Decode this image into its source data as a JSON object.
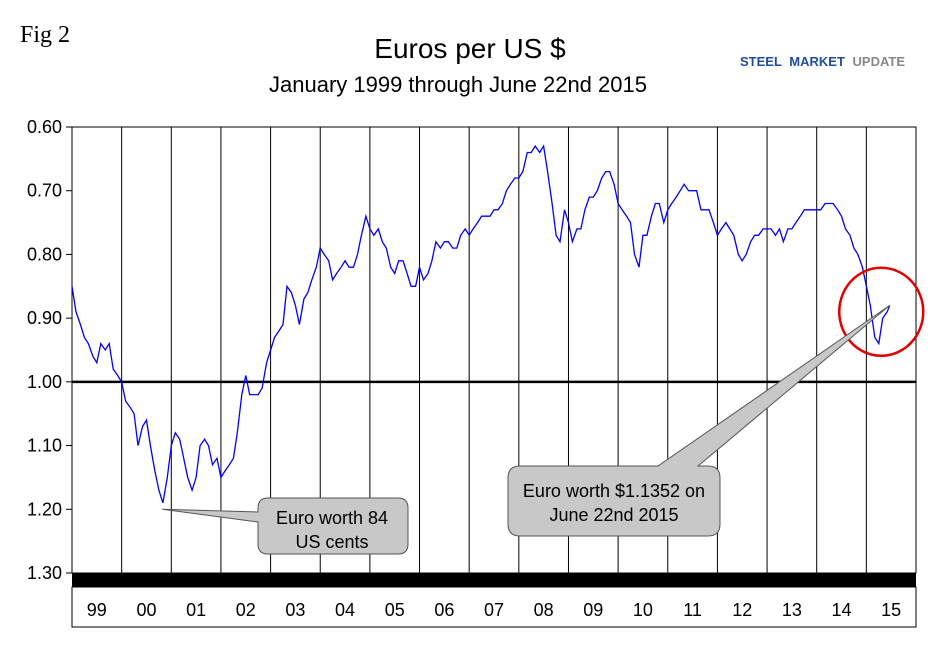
{
  "figure": {
    "fig_label": "Fig 2",
    "logo": {
      "word1": "STEEL",
      "word2": "MARKET",
      "word3": "UPDATE",
      "color1": "#1f4e9c",
      "color2": "#888888"
    }
  },
  "chart_data": {
    "type": "line",
    "title": "Euros per US $",
    "subtitle": "January 1999 through June 22nd 2015",
    "xlabel": "",
    "ylabel": "",
    "y_inverted": true,
    "ylim": [
      0.6,
      1.3
    ],
    "xlim": [
      1999.0,
      2016.0
    ],
    "y_ticks": [
      "0.60",
      "0.70",
      "0.80",
      "0.90",
      "1.00",
      "1.10",
      "1.20",
      "1.30"
    ],
    "x_categories": [
      "99",
      "00",
      "01",
      "02",
      "03",
      "04",
      "05",
      "06",
      "07",
      "08",
      "09",
      "10",
      "11",
      "12",
      "13",
      "14",
      "15"
    ],
    "grid": "vertical lines at year boundaries",
    "reference_line": 1.0,
    "line_color": "#0000ff",
    "series": [
      {
        "x": [
          1999.0,
          1999.08,
          1999.17,
          1999.25,
          1999.33,
          1999.42,
          1999.5,
          1999.58,
          1999.67,
          1999.75,
          1999.83,
          1999.92,
          2000.0,
          2000.08,
          2000.17,
          2000.25,
          2000.33,
          2000.42,
          2000.5,
          2000.58,
          2000.67,
          2000.75,
          2000.83,
          2000.92,
          2001.0,
          2001.08,
          2001.17,
          2001.25,
          2001.33,
          2001.42,
          2001.5,
          2001.58,
          2001.67,
          2001.75,
          2001.83,
          2001.92,
          2002.0,
          2002.08,
          2002.17,
          2002.25,
          2002.33,
          2002.42,
          2002.5,
          2002.58,
          2002.67,
          2002.75,
          2002.83,
          2002.92,
          2003.0,
          2003.08,
          2003.17,
          2003.25,
          2003.33,
          2003.42,
          2003.5,
          2003.58,
          2003.67,
          2003.75,
          2003.83,
          2003.92,
          2004.0,
          2004.08,
          2004.17,
          2004.25,
          2004.33,
          2004.42,
          2004.5,
          2004.58,
          2004.67,
          2004.75,
          2004.83,
          2004.92,
          2005.0,
          2005.08,
          2005.17,
          2005.25,
          2005.33,
          2005.42,
          2005.5,
          2005.58,
          2005.67,
          2005.75,
          2005.83,
          2005.92,
          2006.0,
          2006.08,
          2006.17,
          2006.25,
          2006.33,
          2006.42,
          2006.5,
          2006.58,
          2006.67,
          2006.75,
          2006.83,
          2006.92,
          2007.0,
          2007.08,
          2007.17,
          2007.25,
          2007.33,
          2007.42,
          2007.5,
          2007.58,
          2007.67,
          2007.75,
          2007.83,
          2007.92,
          2008.0,
          2008.08,
          2008.17,
          2008.25,
          2008.33,
          2008.42,
          2008.5,
          2008.58,
          2008.67,
          2008.75,
          2008.83,
          2008.92,
          2009.0,
          2009.08,
          2009.17,
          2009.25,
          2009.33,
          2009.42,
          2009.5,
          2009.58,
          2009.67,
          2009.75,
          2009.83,
          2009.92,
          2010.0,
          2010.08,
          2010.17,
          2010.25,
          2010.33,
          2010.42,
          2010.5,
          2010.58,
          2010.67,
          2010.75,
          2010.83,
          2010.92,
          2011.0,
          2011.08,
          2011.17,
          2011.25,
          2011.33,
          2011.42,
          2011.5,
          2011.58,
          2011.67,
          2011.75,
          2011.83,
          2011.92,
          2012.0,
          2012.08,
          2012.17,
          2012.25,
          2012.33,
          2012.42,
          2012.5,
          2012.58,
          2012.67,
          2012.75,
          2012.83,
          2012.92,
          2013.0,
          2013.08,
          2013.17,
          2013.25,
          2013.33,
          2013.42,
          2013.5,
          2013.58,
          2013.67,
          2013.75,
          2013.83,
          2013.92,
          2014.0,
          2014.08,
          2014.17,
          2014.25,
          2014.33,
          2014.42,
          2014.5,
          2014.58,
          2014.67,
          2014.75,
          2014.83,
          2014.92,
          2015.0,
          2015.08,
          2015.17,
          2015.25,
          2015.33,
          2015.42,
          2015.47
        ],
        "y": [
          0.85,
          0.89,
          0.91,
          0.93,
          0.94,
          0.96,
          0.97,
          0.94,
          0.95,
          0.94,
          0.98,
          0.99,
          1.0,
          1.03,
          1.04,
          1.05,
          1.1,
          1.07,
          1.06,
          1.1,
          1.14,
          1.17,
          1.19,
          1.15,
          1.1,
          1.08,
          1.09,
          1.12,
          1.15,
          1.17,
          1.15,
          1.1,
          1.09,
          1.1,
          1.13,
          1.12,
          1.15,
          1.14,
          1.13,
          1.12,
          1.08,
          1.02,
          0.99,
          1.02,
          1.02,
          1.02,
          1.01,
          0.97,
          0.95,
          0.93,
          0.92,
          0.91,
          0.85,
          0.86,
          0.88,
          0.91,
          0.87,
          0.86,
          0.84,
          0.82,
          0.79,
          0.8,
          0.81,
          0.84,
          0.83,
          0.82,
          0.81,
          0.82,
          0.82,
          0.8,
          0.77,
          0.74,
          0.76,
          0.77,
          0.76,
          0.78,
          0.79,
          0.82,
          0.83,
          0.81,
          0.81,
          0.83,
          0.85,
          0.85,
          0.82,
          0.84,
          0.83,
          0.81,
          0.78,
          0.79,
          0.78,
          0.78,
          0.79,
          0.79,
          0.77,
          0.76,
          0.77,
          0.76,
          0.75,
          0.74,
          0.74,
          0.74,
          0.73,
          0.73,
          0.72,
          0.7,
          0.69,
          0.68,
          0.68,
          0.67,
          0.64,
          0.64,
          0.63,
          0.64,
          0.63,
          0.67,
          0.72,
          0.77,
          0.78,
          0.73,
          0.75,
          0.78,
          0.76,
          0.76,
          0.73,
          0.71,
          0.71,
          0.7,
          0.68,
          0.67,
          0.67,
          0.69,
          0.72,
          0.73,
          0.74,
          0.75,
          0.8,
          0.82,
          0.77,
          0.77,
          0.74,
          0.72,
          0.72,
          0.75,
          0.73,
          0.72,
          0.71,
          0.7,
          0.69,
          0.7,
          0.7,
          0.7,
          0.73,
          0.73,
          0.73,
          0.75,
          0.77,
          0.76,
          0.75,
          0.76,
          0.77,
          0.8,
          0.81,
          0.8,
          0.78,
          0.77,
          0.77,
          0.76,
          0.76,
          0.76,
          0.77,
          0.76,
          0.78,
          0.76,
          0.76,
          0.75,
          0.74,
          0.73,
          0.73,
          0.73,
          0.73,
          0.73,
          0.72,
          0.72,
          0.72,
          0.73,
          0.74,
          0.76,
          0.77,
          0.79,
          0.8,
          0.82,
          0.85,
          0.88,
          0.93,
          0.94,
          0.9,
          0.89,
          0.88
        ]
      }
    ],
    "annotations": [
      {
        "text_line1": "Euro worth 84",
        "text_line2": "US cents",
        "point_x": 2000.82,
        "point_y": 1.2
      },
      {
        "text_line1": "Euro worth $1.1352 on",
        "text_line2": "June 22nd 2015",
        "point_x": 2015.47,
        "point_y": 0.88
      }
    ],
    "highlight_circle": {
      "center_x": 2015.3,
      "center_y": 0.89,
      "color": "#e00000"
    }
  }
}
